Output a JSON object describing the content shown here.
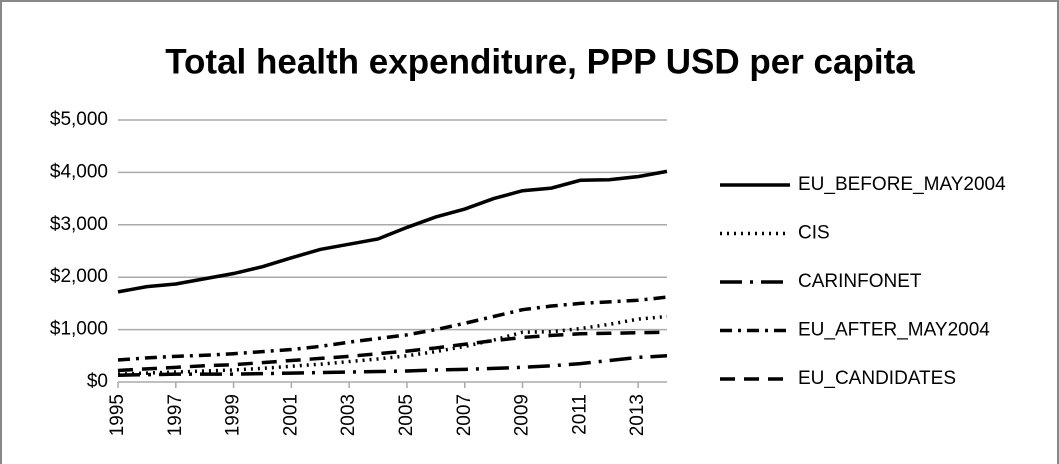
{
  "chart_data": {
    "type": "line",
    "title": "Total health expenditure, PPP USD per capita",
    "x": [
      1995,
      1996,
      1997,
      1998,
      1999,
      2000,
      2001,
      2002,
      2003,
      2004,
      2005,
      2006,
      2007,
      2008,
      2009,
      2010,
      2011,
      2012,
      2013,
      2014
    ],
    "xlim": [
      1995,
      2014
    ],
    "xticks": [
      1995,
      1997,
      1999,
      2001,
      2003,
      2005,
      2007,
      2009,
      2011,
      2013
    ],
    "ylim": [
      0,
      5000
    ],
    "yticks": [
      {
        "value": 0,
        "label": "$0"
      },
      {
        "value": 1000,
        "label": "$1,000"
      },
      {
        "value": 2000,
        "label": "$2,000"
      },
      {
        "value": 3000,
        "label": "$3,000"
      },
      {
        "value": 4000,
        "label": "$4,000"
      },
      {
        "value": 5000,
        "label": "$5,000"
      }
    ],
    "grid": true,
    "legend": "right",
    "series": [
      {
        "name": "EU_BEFORE_MAY2004",
        "color": "#000000",
        "values": [
          1720,
          1820,
          1870,
          1970,
          2070,
          2200,
          2370,
          2530,
          2630,
          2730,
          2950,
          3150,
          3300,
          3500,
          3650,
          3700,
          3850,
          3860,
          3920,
          4020
        ]
      },
      {
        "name": "CIS",
        "color": "#000000",
        "values": [
          150,
          170,
          190,
          210,
          230,
          260,
          300,
          340,
          390,
          440,
          500,
          580,
          680,
          800,
          950,
          960,
          1020,
          1100,
          1200,
          1250
        ]
      },
      {
        "name": "CARINFONET",
        "color": "#000000",
        "values": [
          130,
          140,
          150,
          150,
          150,
          160,
          170,
          180,
          190,
          200,
          210,
          230,
          240,
          260,
          280,
          310,
          350,
          410,
          470,
          500
        ]
      },
      {
        "name": "EU_AFTER_MAY2004",
        "color": "#000000",
        "values": [
          420,
          460,
          490,
          510,
          540,
          580,
          620,
          680,
          760,
          830,
          900,
          1000,
          1120,
          1250,
          1380,
          1450,
          1500,
          1530,
          1560,
          1620
        ]
      },
      {
        "name": "EU_CANDIDATES",
        "color": "#000000",
        "values": [
          220,
          250,
          280,
          310,
          330,
          370,
          410,
          450,
          490,
          540,
          590,
          650,
          720,
          790,
          850,
          890,
          920,
          930,
          940,
          950
        ]
      }
    ]
  }
}
